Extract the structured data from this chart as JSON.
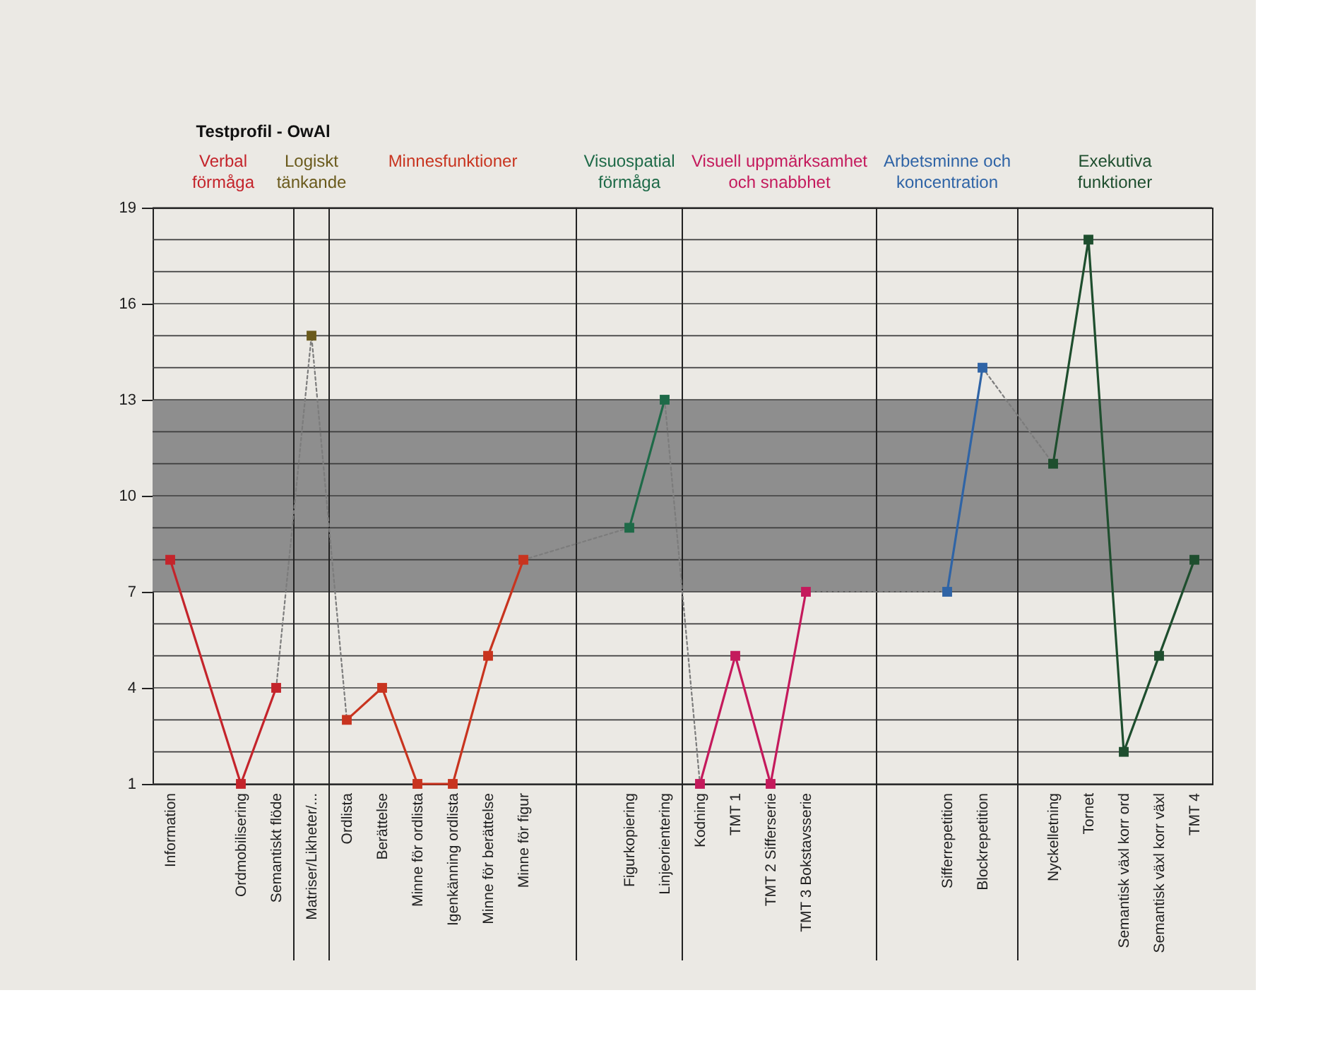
{
  "chart_data": {
    "type": "line",
    "title": "Testprofil - OwAl",
    "categories": [
      "Information",
      null,
      "Ordmobilisering",
      "Semantiskt flöde",
      "Matriser/Likheter/...",
      "Ordlista",
      "Berättelse",
      "Minne för ordlista",
      "Igenkänning ordlista",
      "Minne för berättelse",
      "Minne för figur",
      null,
      null,
      "Figurkopiering",
      "Linjeorientering",
      "Kodning",
      "TMT 1",
      "TMT 2 Sifferserie",
      "TMT 3 Bokstavsserie",
      null,
      null,
      null,
      "Sifferrepetition",
      "Blockrepetition",
      null,
      "Nyckelletning",
      "Tornet",
      "Semantisk växl korr ord",
      "Semantisk växl korr växl",
      "TMT 4"
    ],
    "ylim": [
      1,
      19
    ],
    "yticks": [
      1,
      {
        "value": 2,
        "label": null
      },
      {
        "value": 3,
        "label": null
      },
      4,
      {
        "value": 5,
        "label": null
      },
      {
        "value": 6,
        "label": null
      },
      7,
      {
        "value": 8,
        "label": null
      },
      {
        "value": 9,
        "label": null
      },
      10,
      {
        "value": 11,
        "label": null
      },
      {
        "value": 12,
        "label": null
      },
      13,
      {
        "value": 14,
        "label": null
      },
      {
        "value": 15,
        "label": null
      },
      16,
      {
        "value": 17,
        "label": null
      },
      {
        "value": 18,
        "label": null
      },
      19
    ],
    "grid": true,
    "marker": "square",
    "line_style": "solid",
    "bands": [
      {
        "axis": "y",
        "from": 7,
        "to": 13,
        "color": "#8e8e8e"
      }
    ],
    "series": [
      {
        "name": "Verbal\nförmåga",
        "color": "#c4242b",
        "values": [
          8,
          null,
          1,
          4,
          null,
          null,
          null,
          null,
          null,
          null,
          null,
          null,
          null,
          null,
          null,
          null,
          null,
          null,
          null,
          null,
          null,
          null,
          null,
          null,
          null,
          null,
          null,
          null,
          null,
          null
        ]
      },
      {
        "name": "Logiskt\ntänkande",
        "color": "#6a5a1c",
        "values": [
          null,
          null,
          null,
          null,
          15,
          null,
          null,
          null,
          null,
          null,
          null,
          null,
          null,
          null,
          null,
          null,
          null,
          null,
          null,
          null,
          null,
          null,
          null,
          null,
          null,
          null,
          null,
          null,
          null,
          null
        ]
      },
      {
        "name": "Minnesfunktioner",
        "color": "#c8341f",
        "values": [
          null,
          null,
          null,
          null,
          null,
          3,
          4,
          1,
          1,
          5,
          8,
          null,
          null,
          null,
          null,
          null,
          null,
          null,
          null,
          null,
          null,
          null,
          null,
          null,
          null,
          null,
          null,
          null,
          null,
          null
        ]
      },
      {
        "name": "Visuospatial\nförmåga",
        "color": "#1e6a48",
        "values": [
          null,
          null,
          null,
          null,
          null,
          null,
          null,
          null,
          null,
          null,
          null,
          null,
          null,
          9,
          13,
          null,
          null,
          null,
          null,
          null,
          null,
          null,
          null,
          null,
          null,
          null,
          null,
          null,
          null,
          null
        ]
      },
      {
        "name": "Visuell uppmärksamhet\noch snabbhet",
        "color": "#c41a5c",
        "values": [
          null,
          null,
          null,
          null,
          null,
          null,
          null,
          null,
          null,
          null,
          null,
          null,
          null,
          null,
          null,
          1,
          5,
          1,
          7,
          null,
          null,
          null,
          null,
          null,
          null,
          null,
          null,
          null,
          null,
          null
        ]
      },
      {
        "name": "Arbetsminne och\nkoncentration",
        "color": "#2f64a6",
        "values": [
          null,
          null,
          null,
          null,
          null,
          null,
          null,
          null,
          null,
          null,
          null,
          null,
          null,
          null,
          null,
          null,
          null,
          null,
          null,
          null,
          null,
          null,
          7,
          14,
          null,
          null,
          null,
          null,
          null,
          null
        ]
      },
      {
        "name": "Exekutiva\nfunktioner",
        "color": "#1e4e2e",
        "values": [
          null,
          null,
          null,
          null,
          null,
          null,
          null,
          null,
          null,
          null,
          null,
          null,
          null,
          null,
          null,
          null,
          null,
          null,
          null,
          null,
          null,
          null,
          null,
          null,
          null,
          11,
          18,
          2,
          5,
          8
        ]
      },
      {
        "color": "#7c7c7c",
        "line_style": "dotted",
        "marker": "none",
        "values": [
          null,
          null,
          null,
          4,
          15,
          3,
          null,
          null,
          null,
          null,
          null,
          null,
          null,
          null,
          null,
          null,
          null,
          null,
          null,
          null,
          null,
          null,
          null,
          null,
          null,
          null,
          null,
          null,
          null,
          null
        ]
      },
      {
        "color": "#7c7c7c",
        "line_style": "dotted",
        "marker": "none",
        "values": [
          null,
          null,
          null,
          null,
          null,
          null,
          null,
          null,
          null,
          null,
          8,
          null,
          null,
          9,
          null,
          null,
          null,
          null,
          null,
          null,
          null,
          null,
          null,
          null,
          null,
          null,
          null,
          null,
          null,
          null
        ]
      },
      {
        "color": "#7c7c7c",
        "line_style": "dotted",
        "marker": "none",
        "values": [
          null,
          null,
          null,
          null,
          null,
          null,
          null,
          null,
          null,
          null,
          null,
          null,
          null,
          null,
          13,
          1,
          null,
          null,
          null,
          null,
          null,
          null,
          null,
          null,
          null,
          null,
          null,
          null,
          null,
          null
        ]
      },
      {
        "color": "#7c7c7c",
        "line_style": "dotted",
        "marker": "none",
        "values": [
          null,
          null,
          null,
          null,
          null,
          null,
          null,
          null,
          null,
          null,
          null,
          null,
          null,
          null,
          null,
          null,
          null,
          null,
          7,
          null,
          null,
          null,
          7,
          null,
          null,
          null,
          null,
          null,
          null,
          null
        ]
      },
      {
        "color": "#7c7c7c",
        "line_style": "dotted",
        "marker": "none",
        "values": [
          null,
          null,
          null,
          null,
          null,
          null,
          null,
          null,
          null,
          null,
          null,
          null,
          null,
          null,
          null,
          null,
          null,
          null,
          null,
          null,
          null,
          null,
          null,
          14,
          null,
          11,
          null,
          null,
          null,
          null
        ]
      }
    ]
  }
}
